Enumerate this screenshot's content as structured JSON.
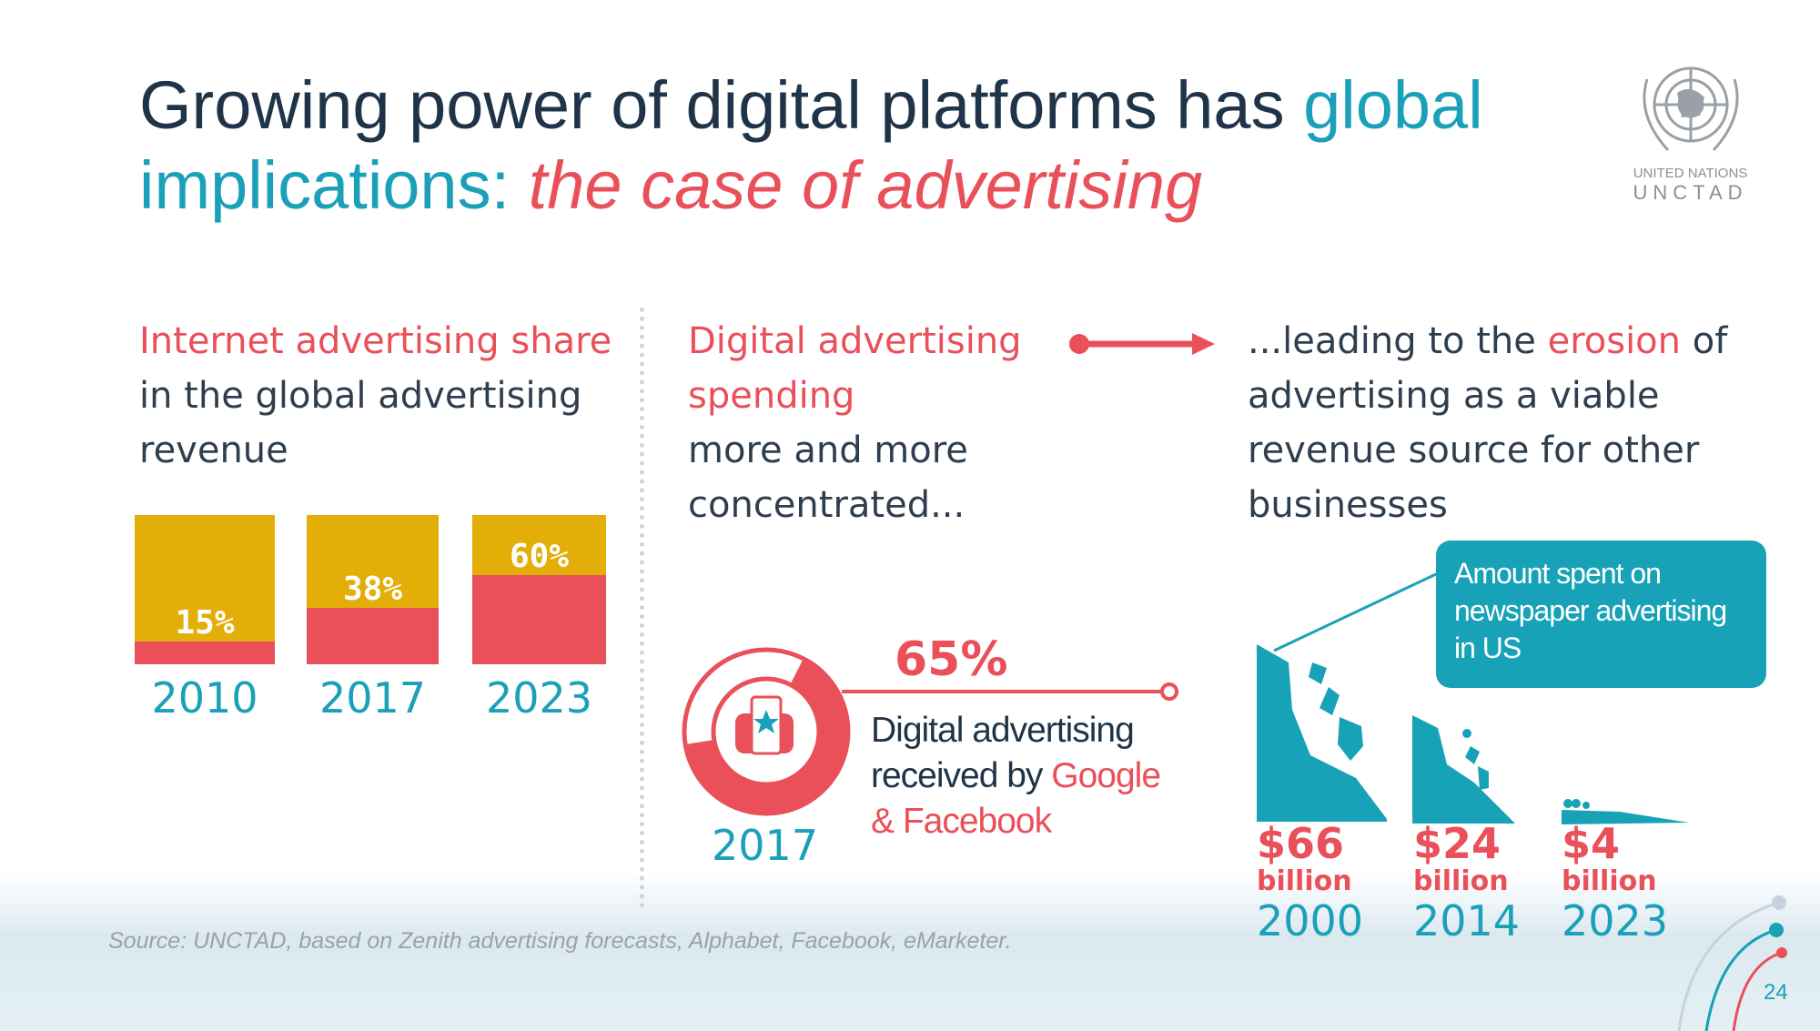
{
  "title": {
    "line1_a": "Growing power of digital platforms has ",
    "line1_b": "global",
    "line2_a": "implications: ",
    "line2_b": "the case of advertising"
  },
  "logo": {
    "line1": "UNITED NATIONS",
    "line2": "UNCTAD"
  },
  "col1": {
    "heading_red": "Internet advertising share",
    "heading_rest1": "in the global advertising",
    "heading_rest2": "revenue",
    "chart_data": {
      "type": "bar",
      "categories": [
        "2010",
        "2017",
        "2023"
      ],
      "values": [
        15,
        38,
        60
      ],
      "labels": [
        "15%",
        "38%",
        "60%"
      ],
      "ylim": [
        0,
        100
      ],
      "colors": {
        "internet": "#e9505a",
        "other": "#e3ae08"
      }
    }
  },
  "col2": {
    "heading_red1": "Digital advertising",
    "heading_red2": "spending",
    "rest1": "more and more",
    "rest2": "concentrated...",
    "pct": "65%",
    "desc1": "Digital advertising",
    "desc2a": "received by ",
    "desc2b": "Google",
    "desc3": "& Facebook",
    "year": "2017",
    "share": 65
  },
  "col3": {
    "t1a": "...leading to the ",
    "t1b": "erosion",
    "t1c": " of",
    "t2": "advertising as a viable",
    "t3": "revenue source for other",
    "t4": "businesses",
    "callout": "Amount spent on newspaper advertising in US",
    "items": [
      {
        "amount": "$66",
        "unit": "billion",
        "year": "2000"
      },
      {
        "amount": "$24",
        "unit": "billion",
        "year": "2014"
      },
      {
        "amount": "$4",
        "unit": "billion",
        "year": "2023"
      }
    ]
  },
  "source": "Source: UNCTAD, based on Zenith advertising forecasts, Alphabet, Facebook, eMarketer.",
  "page_number": "24",
  "colors": {
    "teal": "#1aa0b8",
    "red": "#e9505a",
    "gold": "#e3ae08",
    "navy": "#1f3448"
  }
}
